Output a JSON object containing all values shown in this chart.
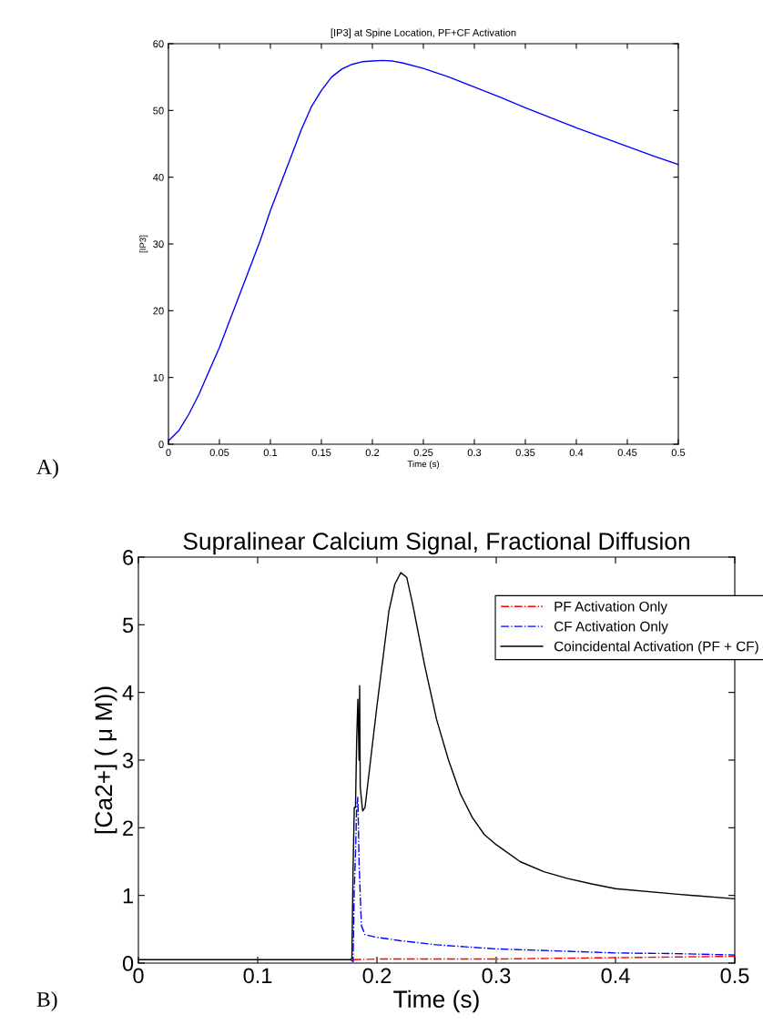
{
  "chart_data": [
    {
      "type": "line",
      "title": "[IP3] at Spine Location, PF+CF Activation",
      "xlabel": "Time (s)",
      "ylabel": "[IP3]",
      "x": [
        0,
        0.01,
        0.02,
        0.03,
        0.04,
        0.05,
        0.06,
        0.07,
        0.08,
        0.09,
        0.1,
        0.11,
        0.12,
        0.13,
        0.14,
        0.15,
        0.16,
        0.17,
        0.18,
        0.19,
        0.2,
        0.21,
        0.22,
        0.23,
        0.25,
        0.275,
        0.3,
        0.325,
        0.35,
        0.375,
        0.4,
        0.425,
        0.45,
        0.475,
        0.5
      ],
      "series": [
        {
          "color": "#0000ff",
          "values": [
            0.5,
            2,
            4.5,
            7.5,
            11,
            14.5,
            18.5,
            22.5,
            26.5,
            30.5,
            35,
            39,
            43,
            47,
            50.5,
            53,
            55,
            56.2,
            56.9,
            57.3,
            57.4,
            57.5,
            57.4,
            57.1,
            56.3,
            55,
            53.5,
            52,
            50.4,
            48.9,
            47.4,
            46,
            44.6,
            43.2,
            41.9
          ]
        }
      ],
      "xlim": [
        0,
        0.5
      ],
      "xticks": [
        0,
        0.05,
        0.1,
        0.15,
        0.2,
        0.25,
        0.3,
        0.35,
        0.4,
        0.45,
        0.5
      ],
      "ylim": [
        0,
        60
      ],
      "yticks": [
        0,
        10,
        20,
        30,
        40,
        50,
        60
      ],
      "annotations": [
        "A)"
      ],
      "grid": false,
      "legend": false
    },
    {
      "type": "line",
      "title": "Supralinear Calcium Signal, Fractional Diffusion",
      "xlabel": "Time (s)",
      "ylabel": "[Ca2+] ( μ M))",
      "series": [
        {
          "name": "PF Activation Only",
          "color": "#ff0000",
          "line_style": "dashdot",
          "x": [
            0.18,
            0.2,
            0.3,
            0.4,
            0.5
          ],
          "values": [
            0.05,
            0.06,
            0.06,
            0.08,
            0.1
          ]
        },
        {
          "name": "CF Activation Only",
          "color": "#0000ff",
          "line_style": "dashdot",
          "x": [
            0.178,
            0.18,
            0.181,
            0.182,
            0.183,
            0.184,
            0.185,
            0.186,
            0.187,
            0.19,
            0.2,
            0.22,
            0.25,
            0.3,
            0.35,
            0.4,
            0.45,
            0.5
          ],
          "values": [
            0.05,
            0.02,
            1.1,
            1.6,
            2.3,
            2.45,
            1.5,
            1.0,
            0.55,
            0.42,
            0.38,
            0.33,
            0.27,
            0.21,
            0.18,
            0.15,
            0.14,
            0.12
          ]
        },
        {
          "name": "Coincidental Activation (PF + CF)",
          "color": "#000000",
          "line_style": "solid",
          "x": [
            0,
            0.178,
            0.179,
            0.18,
            0.181,
            0.182,
            0.183,
            0.184,
            0.185,
            0.1855,
            0.186,
            0.188,
            0.19,
            0.2,
            0.21,
            0.215,
            0.22,
            0.225,
            0.23,
            0.24,
            0.25,
            0.26,
            0.27,
            0.28,
            0.29,
            0.3,
            0.32,
            0.34,
            0.36,
            0.38,
            0.4,
            0.45,
            0.5
          ],
          "values": [
            0.05,
            0.05,
            0.07,
            1.4,
            2.3,
            2.3,
            3.3,
            3.9,
            3.0,
            4.1,
            2.6,
            2.25,
            2.3,
            3.8,
            5.2,
            5.6,
            5.77,
            5.7,
            5.3,
            4.4,
            3.6,
            3.0,
            2.5,
            2.15,
            1.9,
            1.75,
            1.5,
            1.35,
            1.25,
            1.17,
            1.1,
            1.02,
            0.95
          ]
        }
      ],
      "xlim": [
        0,
        0.5
      ],
      "xticks": [
        0,
        0.1,
        0.2,
        0.3,
        0.4,
        0.5
      ],
      "ylim": [
        0,
        6
      ],
      "yticks": [
        0,
        1,
        2,
        3,
        4,
        5,
        6
      ],
      "annotations": [
        "B)"
      ],
      "grid": false,
      "legend": "top right"
    }
  ]
}
